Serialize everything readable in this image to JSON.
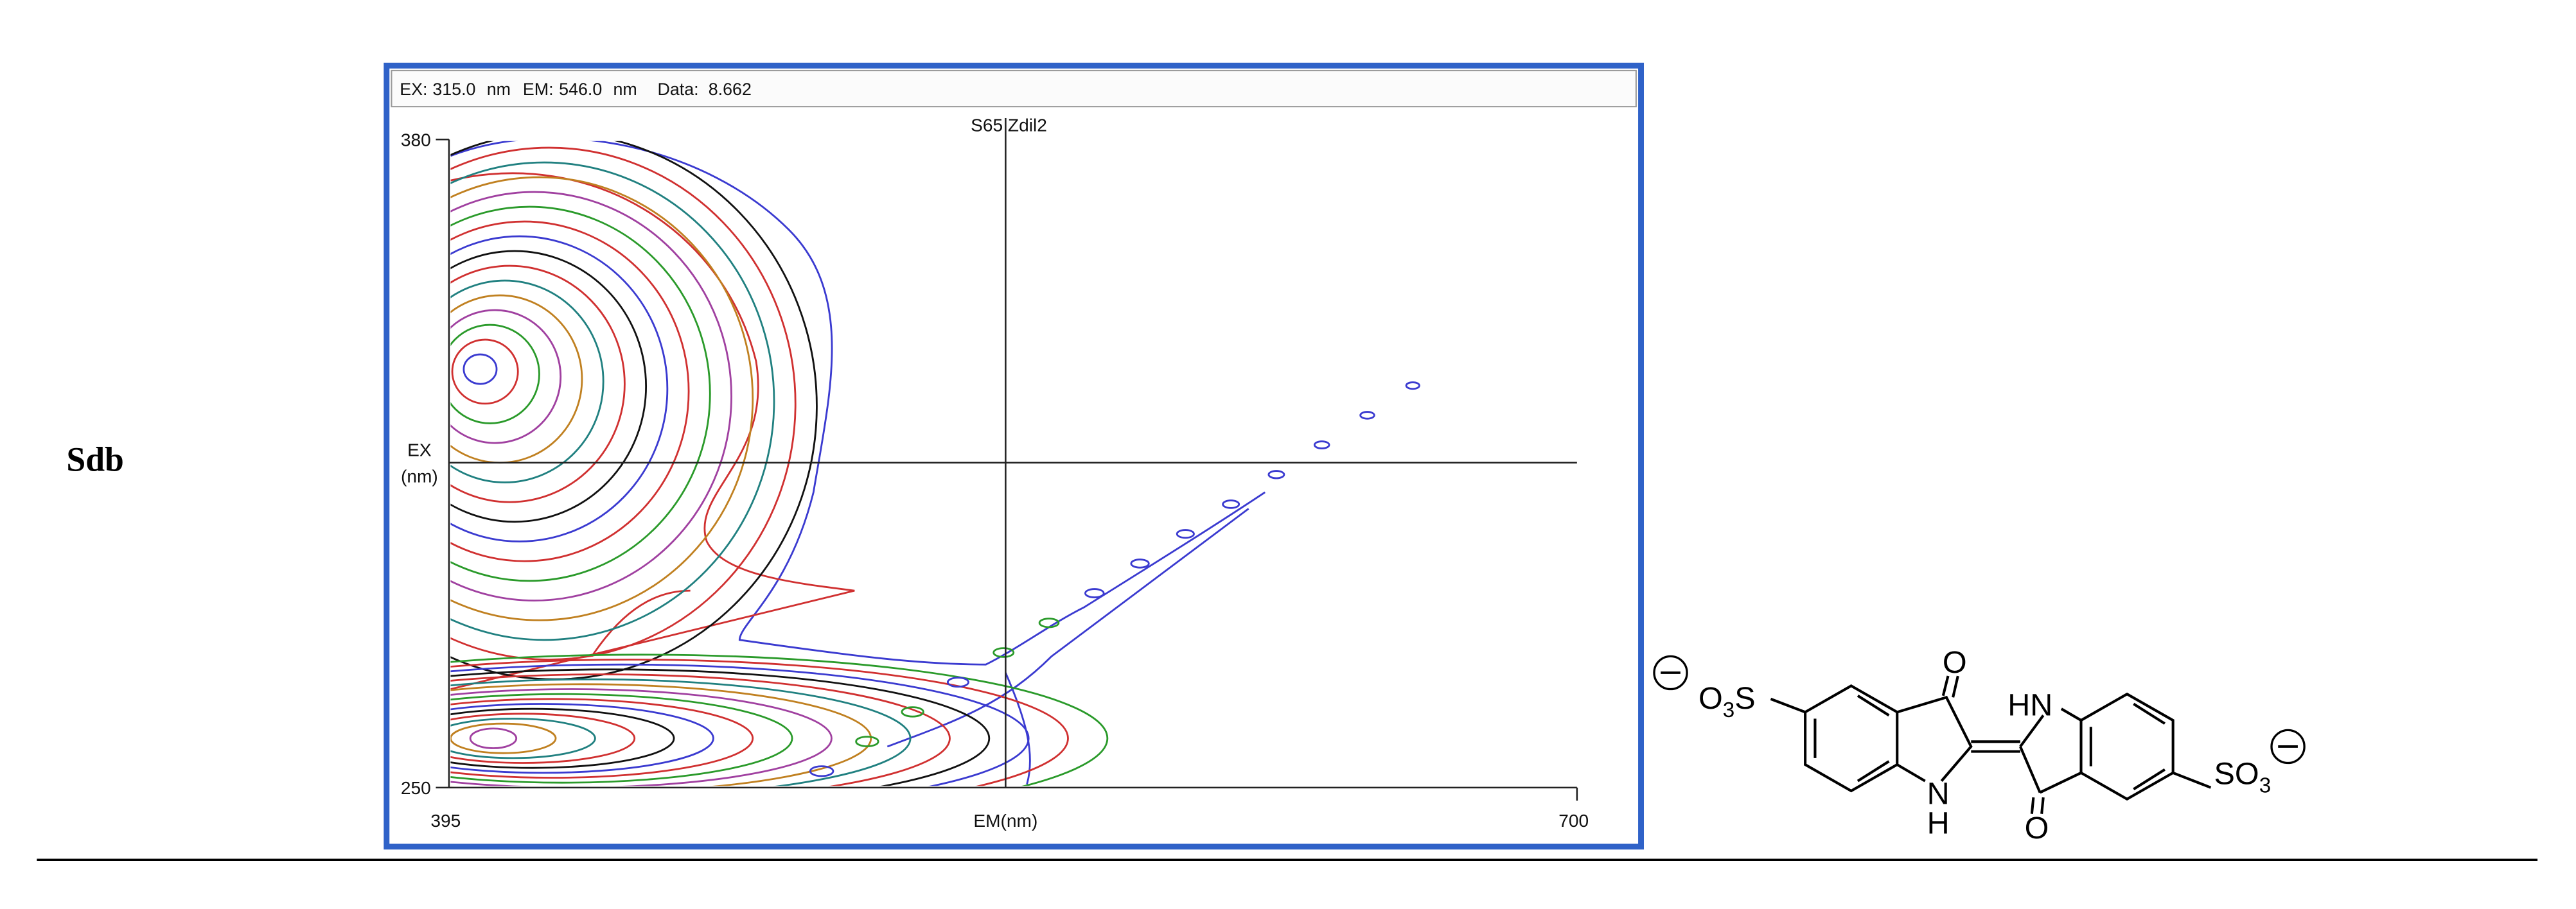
{
  "row_label": "Sdb",
  "plot": {
    "status": {
      "ex_label": "EX:",
      "ex": "315.0",
      "ex_unit": "nm",
      "em_label": "EM:",
      "em": "546.0",
      "em_unit": "nm",
      "data_label": "Data:",
      "data": "8.662"
    },
    "title": "S65 Zdil2",
    "y_axis": {
      "label_line1": "EX",
      "label_line2": "(nm)",
      "top": "380",
      "bottom": "250"
    },
    "x_axis": {
      "label": "EM(nm)",
      "left": "395",
      "right": "700"
    }
  },
  "structure": {
    "left_group": [
      "O",
      "3",
      "S"
    ],
    "right_group": [
      "SO",
      "3"
    ],
    "carbonyl_top": "O",
    "carbonyl_bottom": "O",
    "nh_right": "HN",
    "nh_left": [
      "N",
      "H"
    ]
  }
}
